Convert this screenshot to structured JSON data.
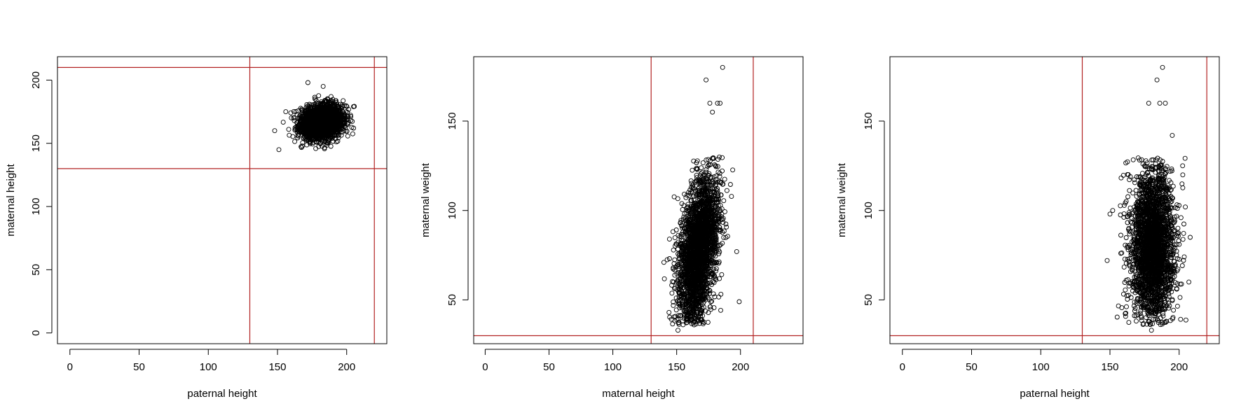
{
  "chart_data": [
    {
      "type": "scatter",
      "xlabel": "paternal height",
      "ylabel": "maternal height",
      "xlim": [
        -9,
        229
      ],
      "ylim": [
        -8.5,
        218.5
      ],
      "xticks": [
        0,
        50,
        100,
        150,
        200
      ],
      "yticks": [
        0,
        50,
        100,
        150,
        200
      ],
      "vlines": [
        130,
        220
      ],
      "hlines": [
        130,
        210
      ],
      "line_color": "#b22222",
      "cloud": {
        "shape": "ellipse",
        "x_center": 182,
        "y_center": 167,
        "x_sd": 7.5,
        "y_sd": 6.5,
        "x_range": [
          150,
          210
        ],
        "y_range": [
          138,
          198
        ],
        "correlation": 0.15,
        "description": "dense elliptical cluster of points"
      },
      "outliers": [
        [
          172,
          198
        ],
        [
          183,
          195
        ],
        [
          151,
          145
        ],
        [
          156,
          175
        ],
        [
          148,
          160
        ],
        [
          203,
          168
        ],
        [
          205,
          162
        ]
      ]
    },
    {
      "type": "scatter",
      "xlabel": "maternal height",
      "ylabel": "maternal weight",
      "xlim": [
        -9,
        249
      ],
      "ylim": [
        25.5,
        186
      ],
      "xticks": [
        0,
        50,
        100,
        150,
        200
      ],
      "yticks": [
        50,
        100,
        150
      ],
      "vlines": [
        130,
        210
      ],
      "hlines": [
        30
      ],
      "line_color": "#b22222",
      "cloud": {
        "shape": "tilted",
        "x_center": 167,
        "y_center": 78,
        "x_sd": 8,
        "y_sd": 22,
        "x_range": [
          140,
          195
        ],
        "y_range": [
          36,
          130
        ],
        "correlation": 0.45,
        "description": "dense column of points, weight increasing with height"
      },
      "outliers": [
        [
          186,
          180
        ],
        [
          173,
          173
        ],
        [
          197,
          77
        ],
        [
          199,
          49
        ],
        [
          151,
          33
        ],
        [
          144,
          43
        ],
        [
          140,
          71
        ],
        [
          176,
          160
        ],
        [
          182,
          160
        ],
        [
          184,
          160
        ],
        [
          178,
          155
        ]
      ]
    },
    {
      "type": "scatter",
      "xlabel": "paternal height",
      "ylabel": "maternal weight",
      "xlim": [
        -9,
        229
      ],
      "ylim": [
        25.5,
        186
      ],
      "xticks": [
        0,
        50,
        100,
        150,
        200
      ],
      "yticks": [
        50,
        100,
        150
      ],
      "vlines": [
        130,
        220
      ],
      "hlines": [
        30
      ],
      "line_color": "#b22222",
      "cloud": {
        "shape": "vertical",
        "x_center": 181,
        "y_center": 80,
        "x_sd": 8,
        "y_sd": 22,
        "x_range": [
          150,
          210
        ],
        "y_range": [
          36,
          130
        ],
        "correlation": 0.0,
        "description": "dense vertical band of points"
      },
      "outliers": [
        [
          188,
          180
        ],
        [
          184,
          173
        ],
        [
          180,
          33
        ],
        [
          148,
          72
        ],
        [
          150,
          98
        ],
        [
          152,
          100
        ],
        [
          208,
          85
        ],
        [
          207,
          60
        ],
        [
          178,
          160
        ],
        [
          186,
          160
        ],
        [
          190,
          160
        ],
        [
          195,
          142
        ]
      ]
    }
  ]
}
